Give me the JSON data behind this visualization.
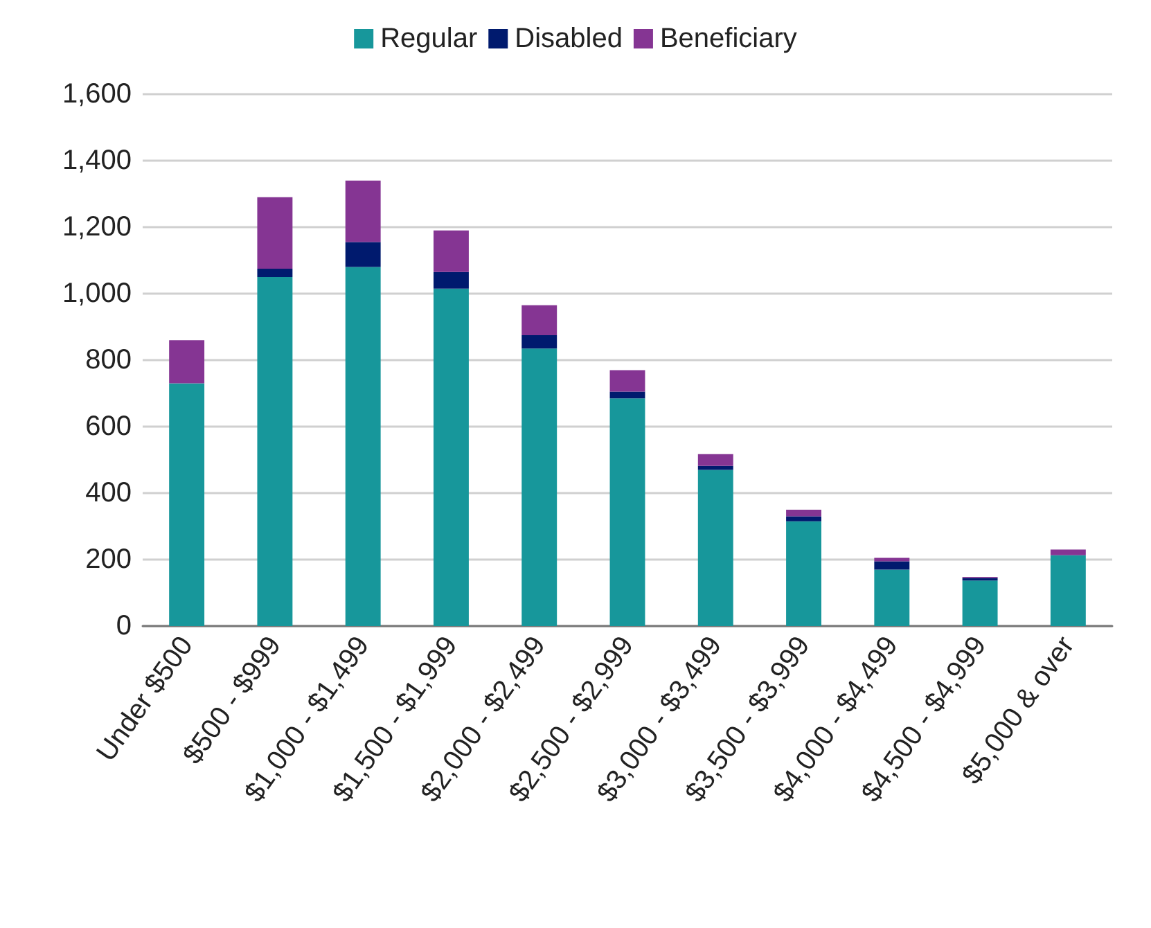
{
  "chart_data": {
    "type": "bar",
    "stacked": true,
    "categories": [
      "Under $500",
      "$500 - $999",
      "$1,000 - $1,499",
      "$1,500 - $1,999",
      "$2,000 - $2,499",
      "$2,500 - $2,999",
      "$3,000 - $3,499",
      "$3,500 - $3,999",
      "$4,000 - $4,499",
      "$4,500 - $4,999",
      "$5,000 & over"
    ],
    "series": [
      {
        "name": "Regular",
        "color": "#17979b",
        "values": [
          730,
          1050,
          1080,
          1015,
          835,
          685,
          470,
          315,
          170,
          137,
          213
        ]
      },
      {
        "name": "Disabled",
        "color": "#001a6e",
        "values": [
          0,
          25,
          75,
          50,
          40,
          20,
          12,
          15,
          25,
          8,
          0
        ]
      },
      {
        "name": "Beneficiary",
        "color": "#853593",
        "values": [
          130,
          215,
          185,
          125,
          90,
          65,
          35,
          20,
          10,
          3,
          17
        ]
      }
    ],
    "ylim": [
      0,
      1600
    ],
    "yticks": [
      0,
      200,
      400,
      600,
      800,
      {
        "value": 1000,
        "label": "1,000"
      },
      {
        "value": 1200,
        "label": "1,200"
      },
      {
        "value": 1400,
        "label": "1,400"
      },
      {
        "value": 1600,
        "label": "1,600"
      }
    ],
    "grid": "y",
    "legend": "top"
  }
}
